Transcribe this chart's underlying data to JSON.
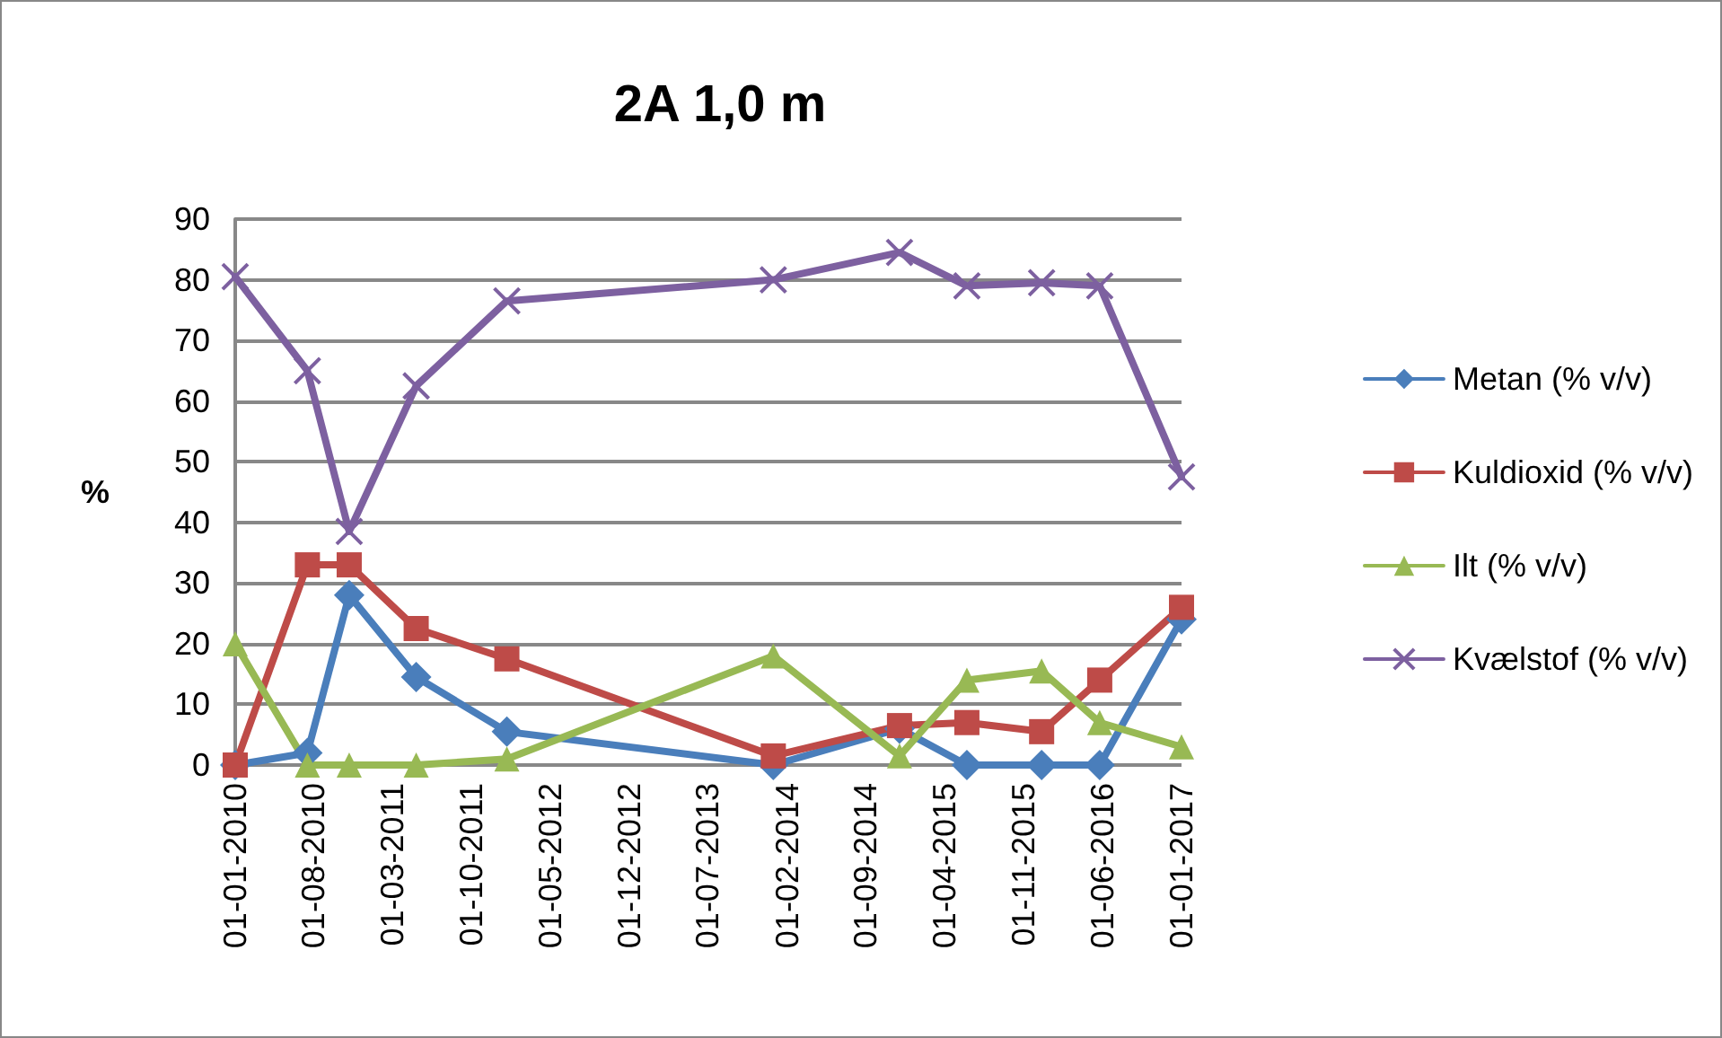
{
  "chart_data": {
    "type": "line",
    "title": "2A 1,0 m",
    "ylabel": "%",
    "x": [
      "2010-01-01",
      "2010-07-15",
      "2010-11-05",
      "2011-05-05",
      "2012-01-05",
      "2013-12-25",
      "2014-12-01",
      "2015-06-01",
      "2015-12-20",
      "2016-05-25",
      "2017-01-01"
    ],
    "series": [
      {
        "name": "Metan (% v/v)",
        "color": "#4a7ebb",
        "marker": "diamond",
        "values": [
          0,
          2,
          28,
          14.5,
          5.5,
          0,
          6,
          0,
          0,
          0,
          24
        ]
      },
      {
        "name": "Kuldioxid (% v/v)",
        "color": "#be4b48",
        "marker": "square",
        "values": [
          0,
          33,
          33,
          22.5,
          17.5,
          1.5,
          6.5,
          7,
          5.5,
          14,
          26
        ]
      },
      {
        "name": "Ilt (% v/v)",
        "color": "#98b954",
        "marker": "triangle",
        "values": [
          20,
          0,
          0,
          0,
          1,
          18,
          1.5,
          14,
          15.5,
          7,
          3
        ]
      },
      {
        "name": "Kvælstof (% v/v)",
        "color": "#7d60a0",
        "marker": "cross",
        "values": [
          80.5,
          65,
          38.5,
          62.5,
          76.5,
          80,
          84.5,
          79,
          79.5,
          79,
          47.5
        ]
      }
    ],
    "xlim": [
      "2010-01-01",
      "2017-01-01"
    ],
    "xticks": [
      {
        "value": "2010-01-01",
        "label": "01-01-2010"
      },
      {
        "value": "2010-08-01",
        "label": "01-08-2010"
      },
      {
        "value": "2011-03-01",
        "label": "01-03-2011"
      },
      {
        "value": "2011-10-01",
        "label": "01-10-2011"
      },
      {
        "value": "2012-05-01",
        "label": "01-05-2012"
      },
      {
        "value": "2012-12-01",
        "label": "01-12-2012"
      },
      {
        "value": "2013-07-01",
        "label": "01-07-2013"
      },
      {
        "value": "2014-02-01",
        "label": "01-02-2014"
      },
      {
        "value": "2014-09-01",
        "label": "01-09-2014"
      },
      {
        "value": "2015-04-01",
        "label": "01-04-2015"
      },
      {
        "value": "2015-11-01",
        "label": "01-11-2015"
      },
      {
        "value": "2016-06-01",
        "label": "01-06-2016"
      },
      {
        "value": "2017-01-01",
        "label": "01-01-2017"
      }
    ],
    "ylim": [
      0,
      90
    ],
    "yticks": [
      0,
      10,
      20,
      30,
      40,
      50,
      60,
      70,
      80,
      90
    ],
    "grid": "y",
    "legend": "right",
    "line_style": "solid"
  }
}
